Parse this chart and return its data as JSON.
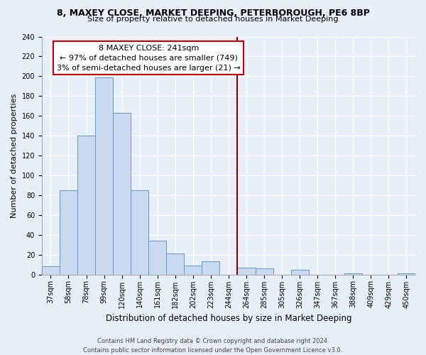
{
  "title": "8, MAXEY CLOSE, MARKET DEEPING, PETERBOROUGH, PE6 8BP",
  "subtitle": "Size of property relative to detached houses in Market Deeping",
  "xlabel": "Distribution of detached houses by size in Market Deeping",
  "ylabel": "Number of detached properties",
  "bin_labels": [
    "37sqm",
    "58sqm",
    "78sqm",
    "99sqm",
    "120sqm",
    "140sqm",
    "161sqm",
    "182sqm",
    "202sqm",
    "223sqm",
    "244sqm",
    "264sqm",
    "285sqm",
    "305sqm",
    "326sqm",
    "347sqm",
    "367sqm",
    "388sqm",
    "409sqm",
    "429sqm",
    "450sqm"
  ],
  "bar_values": [
    8,
    85,
    140,
    199,
    163,
    85,
    34,
    21,
    9,
    13,
    0,
    7,
    6,
    0,
    5,
    0,
    0,
    1,
    0,
    0,
    1
  ],
  "bar_color": "#c8d9f0",
  "bar_edge_color": "#5b9bd5",
  "vline_x_idx": 10,
  "vline_color": "#8b0000",
  "annotation_title": "8 MAXEY CLOSE: 241sqm",
  "annotation_line1": "← 97% of detached houses are smaller (749)",
  "annotation_line2": "3% of semi-detached houses are larger (21) →",
  "annotation_box_facecolor": "#ffffff",
  "annotation_border_color": "#cc0000",
  "ylim": [
    0,
    240
  ],
  "yticks": [
    0,
    20,
    40,
    60,
    80,
    100,
    120,
    140,
    160,
    180,
    200,
    220,
    240
  ],
  "footer_line1": "Contains HM Land Registry data © Crown copyright and database right 2024.",
  "footer_line2": "Contains public sector information licensed under the Open Government Licence v3.0.",
  "fig_bg_color": "#e8eef8",
  "plot_bg_color": "#e8eef8",
  "grid_color": "#ffffff",
  "title_fontsize": 9,
  "subtitle_fontsize": 8,
  "ylabel_fontsize": 8,
  "xlabel_fontsize": 8.5,
  "tick_fontsize": 7,
  "annotation_fontsize": 8,
  "footer_fontsize": 6
}
